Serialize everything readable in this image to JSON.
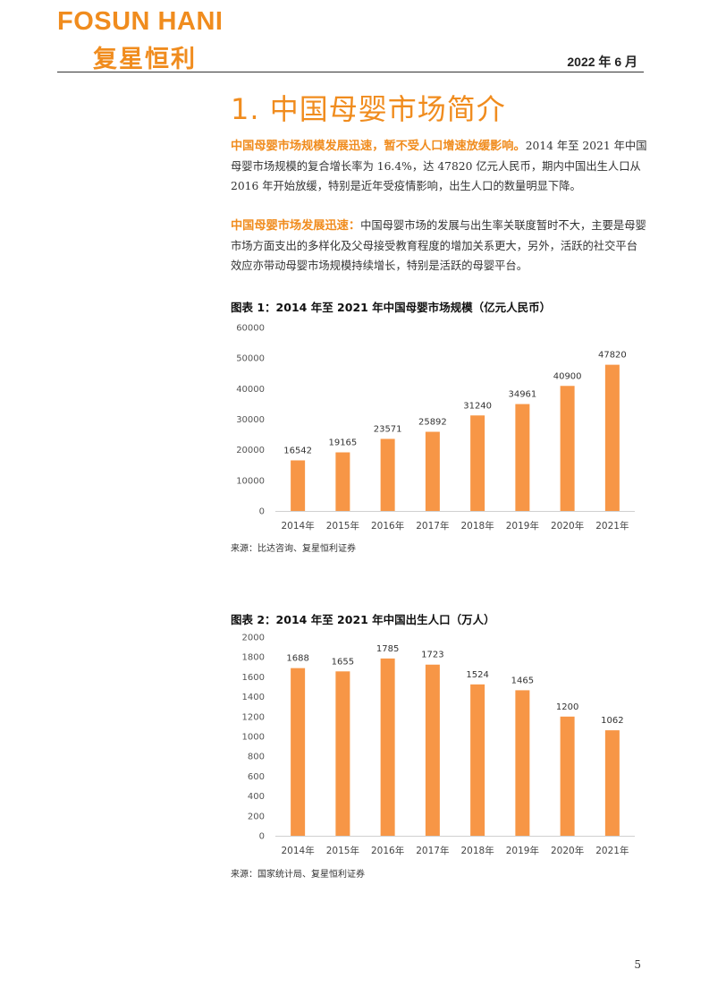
{
  "header": {
    "logo_en": "FOSUN HANI",
    "logo_cn": "复星恒利",
    "date": "2022 年 6 月"
  },
  "section": {
    "title": "1.  中国母婴市场简介"
  },
  "paragraphs": [
    {
      "lead": "中国母婴市场规模发展迅速，暂不受人口增速放缓影响。",
      "body": "2014 年至 2021 年中国母婴市场规模的复合增长率为 16.4%，达 47820 亿元人民币，期内中国出生人口从 2016 年开始放缓，特别是近年受疫情影响，出生人口的数量明显下降。"
    },
    {
      "lead": "中国母婴市场发展迅速：",
      "body": "中国母婴市场的发展与出生率关联度暂时不大，主要是母婴市场方面支出的多样化及父母接受教育程度的增加关系更大，另外，活跃的社交平台效应亦带动母婴市场规模持续增长，特别是活跃的母婴平台。"
    }
  ],
  "figures": [
    {
      "title": "图表 1：2014 年至 2021 年中国母婴市场规模（亿元人民币）",
      "source": "来源：比达咨询、复星恒利证券"
    },
    {
      "title": "图表 2：2014 年至 2021 年中国出生人口（万人）",
      "source": "来源：国家统计局、复星恒利证券"
    }
  ],
  "chart_data": [
    {
      "type": "bar",
      "categories": [
        "2014年",
        "2015年",
        "2016年",
        "2017年",
        "2018年",
        "2019年",
        "2020年",
        "2021年"
      ],
      "values": [
        16542,
        19165,
        23571,
        25892,
        31240,
        34961,
        40900,
        47820
      ],
      "ylim": [
        0,
        60000
      ],
      "yticks": [
        0,
        10000,
        20000,
        30000,
        40000,
        50000,
        60000
      ],
      "data_labels": true,
      "grid": false,
      "color": "#f79646"
    },
    {
      "type": "bar",
      "categories": [
        "2014年",
        "2015年",
        "2016年",
        "2017年",
        "2018年",
        "2019年",
        "2020年",
        "2021年"
      ],
      "values": [
        1688,
        1655,
        1785,
        1723,
        1524,
        1465,
        1200,
        1062
      ],
      "ylim": [
        0,
        2000
      ],
      "yticks": [
        0,
        200,
        400,
        600,
        800,
        1000,
        1200,
        1400,
        1600,
        1800,
        2000
      ],
      "data_labels": true,
      "grid": false,
      "color": "#f79646"
    }
  ],
  "footer": {
    "page_number": "5"
  }
}
